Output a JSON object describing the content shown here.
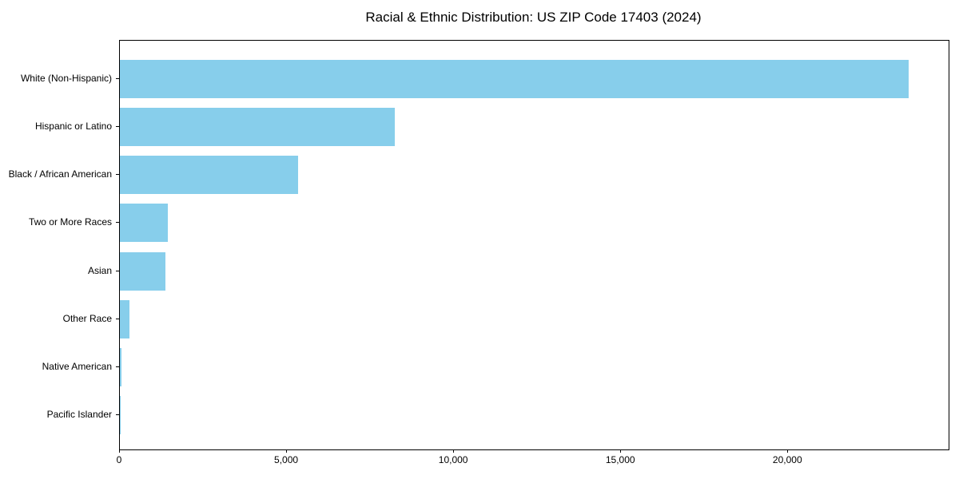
{
  "chart_data": {
    "type": "bar",
    "orientation": "horizontal",
    "title": "Racial & Ethnic Distribution: US ZIP Code 17403 (2024)",
    "categories": [
      "White (Non-Hispanic)",
      "Hispanic or Latino",
      "Black / African American",
      "Two or More Races",
      "Asian",
      "Other Race",
      "Native American",
      "Pacific Islander"
    ],
    "values": [
      23610,
      8230,
      5340,
      1440,
      1360,
      290,
      40,
      10
    ],
    "bar_color": "#87CEEB",
    "xlabel": "",
    "ylabel": "",
    "xlim": [
      0,
      24800
    ],
    "x_ticks": [
      {
        "value": 0,
        "label": "0"
      },
      {
        "value": 5000,
        "label": "5,000"
      },
      {
        "value": 10000,
        "label": "10,000"
      },
      {
        "value": 15000,
        "label": "15,000"
      },
      {
        "value": 20000,
        "label": "20,000"
      }
    ],
    "grid": false,
    "legend": "none"
  }
}
